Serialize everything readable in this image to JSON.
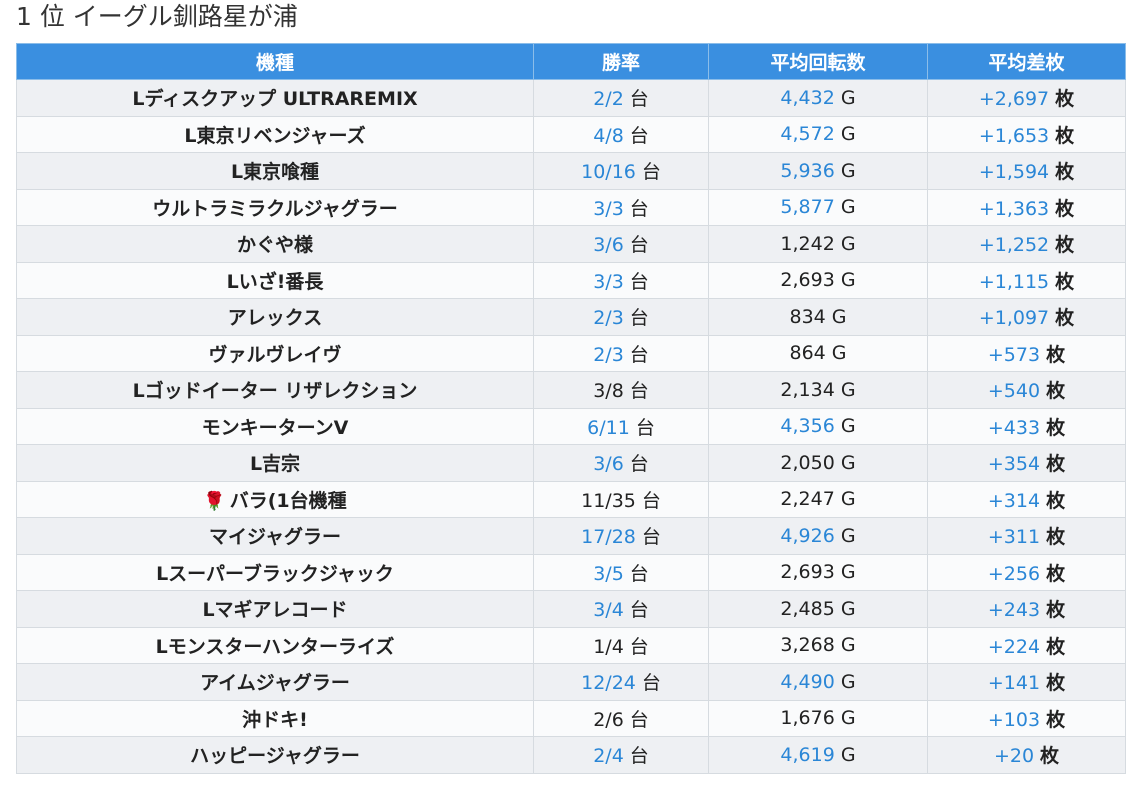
{
  "page": {
    "title": "1 位 イーグル釧路星が浦"
  },
  "table": {
    "headers": [
      "機種",
      "勝率",
      "平均回転数",
      "平均差枚"
    ],
    "units": {
      "rate": "台",
      "spins": "G",
      "diff": "枚"
    },
    "colors": {
      "header_bg": "#3a8fe0",
      "highlight": "#2a86d6",
      "text": "#222222"
    },
    "rows": [
      {
        "icon": "",
        "name": "Lディスクアップ ULTRAREMIX",
        "rate": "2/2",
        "rate_hi": true,
        "spins": "4,432",
        "spins_hi": true,
        "diff": "+2,697"
      },
      {
        "icon": "",
        "name": "L東京リベンジャーズ",
        "rate": "4/8",
        "rate_hi": true,
        "spins": "4,572",
        "spins_hi": true,
        "diff": "+1,653"
      },
      {
        "icon": "",
        "name": "L東京喰種",
        "rate": "10/16",
        "rate_hi": true,
        "spins": "5,936",
        "spins_hi": true,
        "diff": "+1,594"
      },
      {
        "icon": "",
        "name": "ウルトラミラクルジャグラー",
        "rate": "3/3",
        "rate_hi": true,
        "spins": "5,877",
        "spins_hi": true,
        "diff": "+1,363"
      },
      {
        "icon": "",
        "name": "かぐや様",
        "rate": "3/6",
        "rate_hi": true,
        "spins": "1,242",
        "spins_hi": false,
        "diff": "+1,252"
      },
      {
        "icon": "",
        "name": "Lいざ!番長",
        "rate": "3/3",
        "rate_hi": true,
        "spins": "2,693",
        "spins_hi": false,
        "diff": "+1,115"
      },
      {
        "icon": "",
        "name": "アレックス",
        "rate": "2/3",
        "rate_hi": true,
        "spins": "834",
        "spins_hi": false,
        "diff": "+1,097"
      },
      {
        "icon": "",
        "name": "ヴァルヴレイヴ",
        "rate": "2/3",
        "rate_hi": true,
        "spins": "864",
        "spins_hi": false,
        "diff": "+573"
      },
      {
        "icon": "",
        "name": "Lゴッドイーター リザレクション",
        "rate": "3/8",
        "rate_hi": false,
        "spins": "2,134",
        "spins_hi": false,
        "diff": "+540"
      },
      {
        "icon": "",
        "name": "モンキーターンV",
        "rate": "6/11",
        "rate_hi": true,
        "spins": "4,356",
        "spins_hi": true,
        "diff": "+433"
      },
      {
        "icon": "",
        "name": "L吉宗",
        "rate": "3/6",
        "rate_hi": true,
        "spins": "2,050",
        "spins_hi": false,
        "diff": "+354"
      },
      {
        "icon": "🌹",
        "name": "バラ(1台機種",
        "rate": "11/35",
        "rate_hi": false,
        "spins": "2,247",
        "spins_hi": false,
        "diff": "+314"
      },
      {
        "icon": "",
        "name": "マイジャグラー",
        "rate": "17/28",
        "rate_hi": true,
        "spins": "4,926",
        "spins_hi": true,
        "diff": "+311"
      },
      {
        "icon": "",
        "name": "Lスーパーブラックジャック",
        "rate": "3/5",
        "rate_hi": true,
        "spins": "2,693",
        "spins_hi": false,
        "diff": "+256"
      },
      {
        "icon": "",
        "name": "Lマギアレコード",
        "rate": "3/4",
        "rate_hi": true,
        "spins": "2,485",
        "spins_hi": false,
        "diff": "+243"
      },
      {
        "icon": "",
        "name": "Lモンスターハンターライズ",
        "rate": "1/4",
        "rate_hi": false,
        "spins": "3,268",
        "spins_hi": false,
        "diff": "+224"
      },
      {
        "icon": "",
        "name": "アイムジャグラー",
        "rate": "12/24",
        "rate_hi": true,
        "spins": "4,490",
        "spins_hi": true,
        "diff": "+141"
      },
      {
        "icon": "",
        "name": "沖ドキ!",
        "rate": "2/6",
        "rate_hi": false,
        "spins": "1,676",
        "spins_hi": false,
        "diff": "+103"
      },
      {
        "icon": "",
        "name": "ハッピージャグラー",
        "rate": "2/4",
        "rate_hi": true,
        "spins": "4,619",
        "spins_hi": true,
        "diff": "+20"
      }
    ]
  }
}
